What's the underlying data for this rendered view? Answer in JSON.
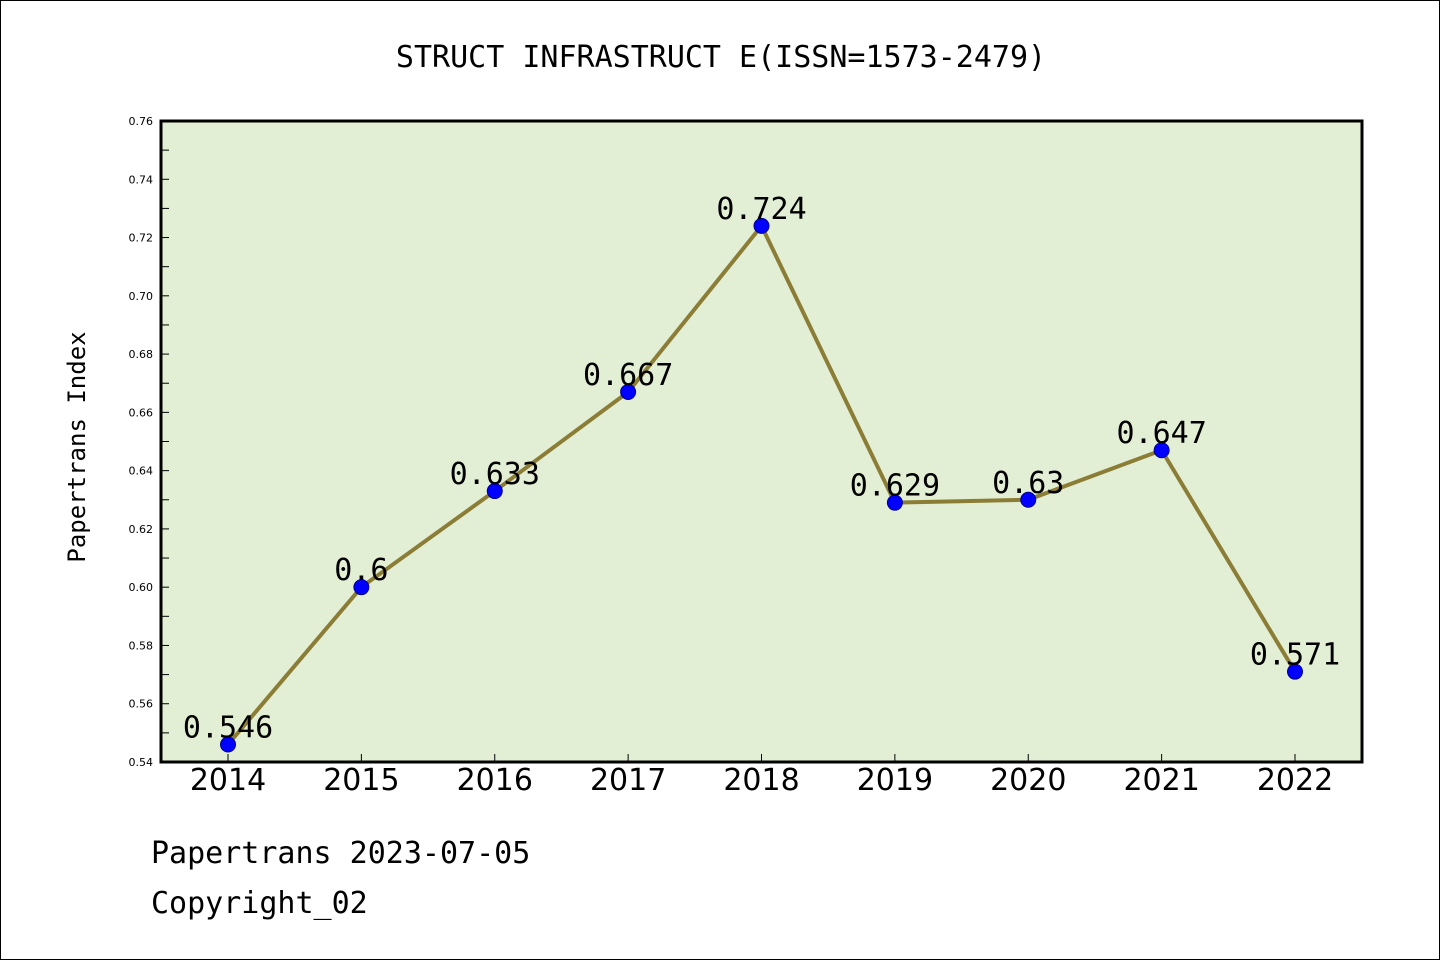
{
  "chart_data": {
    "type": "line",
    "title": "STRUCT INFRASTRUCT E(ISSN=1573-2479)",
    "xlabel": "",
    "ylabel": "Papertrans Index",
    "categories": [
      "2014",
      "2015",
      "2016",
      "2017",
      "2018",
      "2019",
      "2020",
      "2021",
      "2022"
    ],
    "values": [
      0.546,
      0.6,
      0.633,
      0.667,
      0.724,
      0.629,
      0.63,
      0.647,
      0.571
    ],
    "data_labels": [
      "0.546",
      "0.6",
      "0.633",
      "0.667",
      "0.724",
      "0.629",
      "0.63",
      "0.647",
      "0.571"
    ],
    "ylim": [
      0.54,
      0.76
    ],
    "yticks": [
      "0.54",
      "0.56",
      "0.58",
      "0.60",
      "0.62",
      "0.64",
      "0.66",
      "0.68",
      "0.70",
      "0.72",
      "0.74",
      "0.76"
    ],
    "grid": false,
    "colors": {
      "plot_background": "#e2efd5",
      "line": "#8b7d36",
      "marker": "#0000ff"
    }
  },
  "footer": {
    "date_line": "Papertrans 2023-07-05",
    "copyright": "Copyright_02"
  }
}
